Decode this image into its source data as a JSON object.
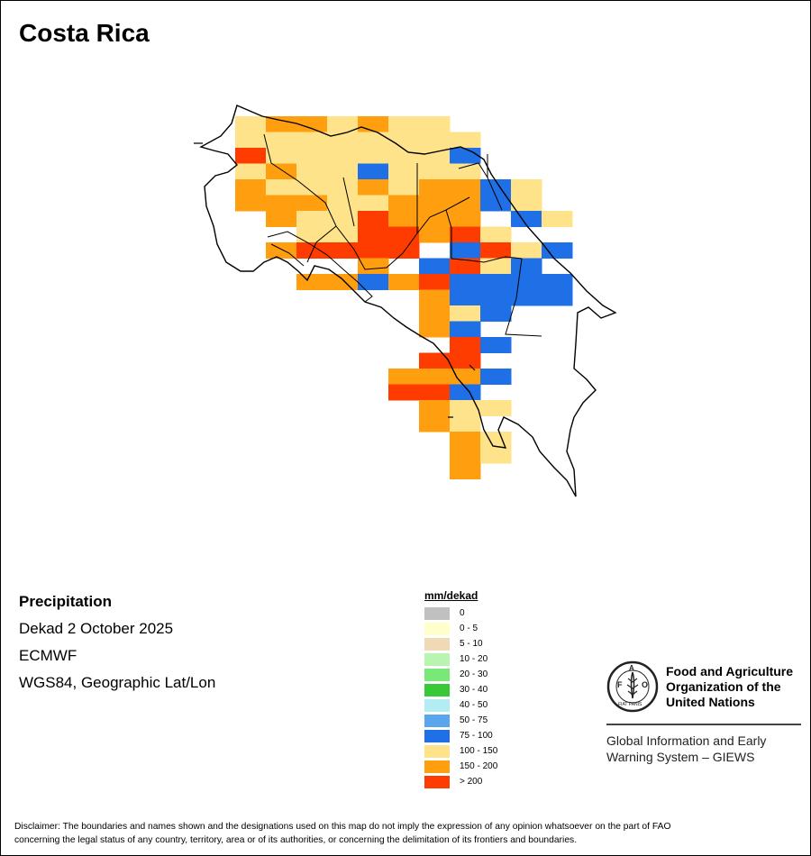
{
  "title": "Costa Rica",
  "info": {
    "variable": "Precipitation",
    "period": "Dekad 2 October 2025",
    "source": "ECMWF",
    "projection": "WGS84, Geographic Lat/Lon"
  },
  "legend": {
    "title": "mm/dekad",
    "items": [
      {
        "label": "0",
        "color": "#c0c0c0"
      },
      {
        "label": "0 - 5",
        "color": "#ffffcc"
      },
      {
        "label": "5 - 10",
        "color": "#f0d9b5"
      },
      {
        "label": "10 - 20",
        "color": "#b8f5b0"
      },
      {
        "label": "20 - 30",
        "color": "#78e878"
      },
      {
        "label": "30 - 40",
        "color": "#38c838"
      },
      {
        "label": "40 - 50",
        "color": "#b4ecf4"
      },
      {
        "label": "50 - 75",
        "color": "#5aa6ee"
      },
      {
        "label": "75 - 100",
        "color": "#1f6fe6"
      },
      {
        "label": "100 - 150",
        "color": "#ffe38a"
      },
      {
        "label": "150 - 200",
        "color": "#ff9f0f"
      },
      {
        "label": "> 200",
        "color": "#ff3c00"
      }
    ]
  },
  "grid_classes": {
    "0": "none",
    "1": "100 - 150",
    "2": "150 - 200",
    "3": "> 200",
    "4": "75 - 100"
  },
  "grid_rows": [
    "..1221211....",
    "..11111111...",
    "..31111114...",
    "..12114111...",
    "..2111212241.",
    "..2221122241.",
    "...2113222.41",
    "....1133231..",
    "...23333.4314",
    "......2.4314.",
    "....224234444",
    "........24444",
    "........214..",
    "........24...",
    ".........34..",
    "........33...",
    ".......2224..",
    ".......334...",
    "........211..",
    "........21...",
    ".........21..",
    ".........21..",
    ".........2..."
  ],
  "logo": {
    "org_line1": "Food and Agriculture",
    "org_line2": "Organization of the",
    "org_line3": "United Nations",
    "acronym": "FAO",
    "motto": "FIAT PANIS",
    "system_line1": "Global Information and Early",
    "system_line2": "Warning System – GIEWS"
  },
  "disclaimer_line1": "Disclaimer: The boundaries and names shown and the designations used on this map do not imply the expression of any opinion whatsoever on the part of FAO",
  "disclaimer_line2": "concerning the legal status of any country, territory, area or of its authorities, or concerning the delimitation of its frontiers and boundaries."
}
